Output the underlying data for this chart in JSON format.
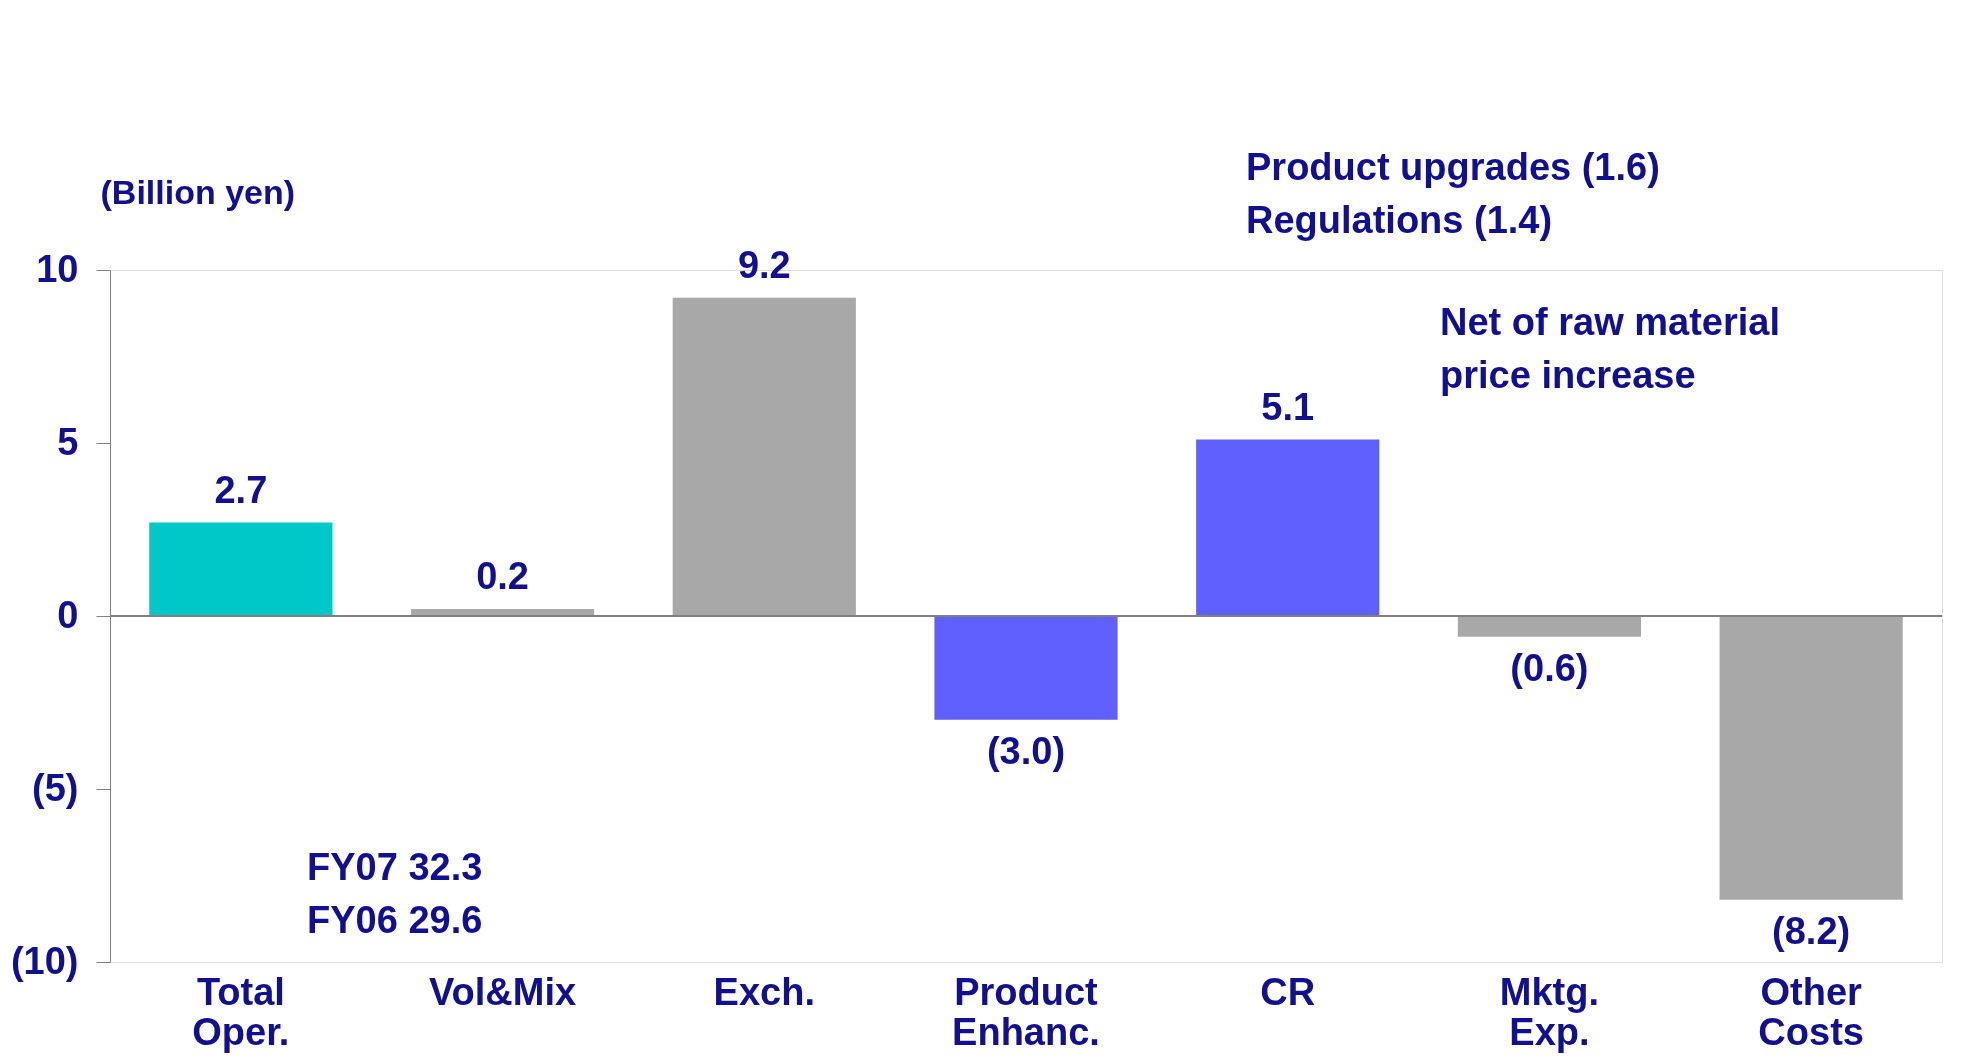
{
  "chart_data": {
    "type": "bar",
    "ylabel": "(Billion yen)",
    "categories": [
      "Total Oper.",
      "Vol&Mix",
      "Exch.",
      "Product Enhanc.",
      "CR",
      "Mktg. Exp.",
      "Other Costs"
    ],
    "values": [
      2.7,
      0.2,
      9.2,
      -3.0,
      5.1,
      -0.6,
      -8.2
    ],
    "colors": [
      "#00c8c8",
      "#a8a8a8",
      "#a8a8a8",
      "#6060ff",
      "#6060ff",
      "#a8a8a8",
      "#a8a8a8"
    ],
    "value_labels": [
      "2.7",
      "0.2",
      "9.2",
      "(3.0)",
      "5.1",
      "(0.6)",
      "(8.2)"
    ],
    "ylim": [
      -10,
      10
    ],
    "yticks": [
      {
        "value": -10,
        "label": "(10)"
      },
      {
        "value": -5,
        "label": "(5)"
      },
      0,
      5,
      10
    ],
    "ref_lines": [
      {
        "axis": "y",
        "value": 0,
        "color": "#808080"
      }
    ],
    "annotations": [
      "FY07     32.3\nFY06     29.6",
      "Product upgrades (1.6)\nRegulations (1.4)",
      "Net of raw material\nprice increase"
    ],
    "grid": false
  }
}
